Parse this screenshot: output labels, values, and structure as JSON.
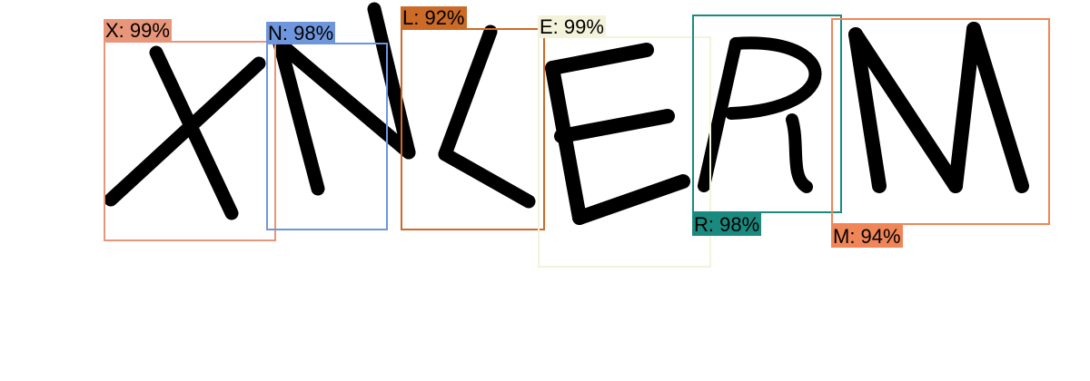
{
  "image": {
    "description_role": "captcha-letter-detections",
    "glyph_color": "#000000",
    "background_color": "#ffffff"
  },
  "detections": [
    {
      "id": "x",
      "letter": "X",
      "label": "X: 99%",
      "confidence": 0.99,
      "color": "#e8957a",
      "label_position": "above"
    },
    {
      "id": "n",
      "letter": "N",
      "label": "N: 98%",
      "confidence": 0.98,
      "color": "#6f96dc",
      "label_position": "above"
    },
    {
      "id": "l",
      "letter": "L",
      "label": "L: 92%",
      "confidence": 0.92,
      "color": "#cc6a28",
      "label_position": "above"
    },
    {
      "id": "e",
      "letter": "E",
      "label": "E: 99%",
      "confidence": 0.99,
      "color": "#f3f3dc",
      "label_position": "above"
    },
    {
      "id": "r",
      "letter": "R",
      "label": "R: 98%",
      "confidence": 0.98,
      "color": "#1a8a80",
      "label_position": "below"
    },
    {
      "id": "m",
      "letter": "M",
      "label": "M: 94%",
      "confidence": 0.94,
      "color": "#f08558",
      "label_position": "below"
    }
  ]
}
